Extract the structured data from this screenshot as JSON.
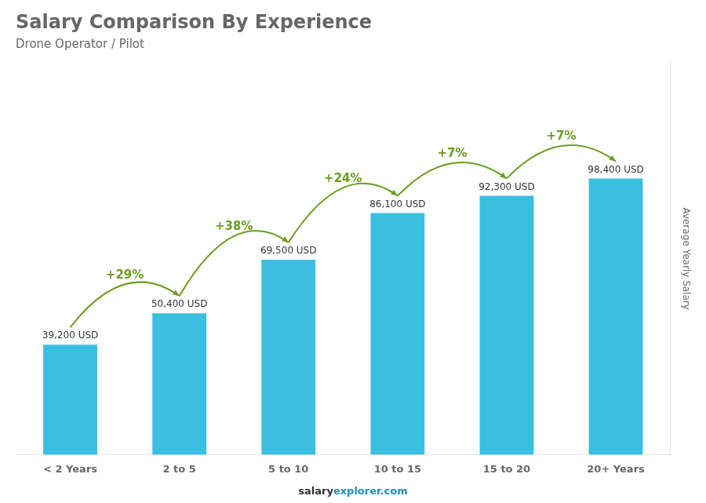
{
  "chart_data": {
    "type": "bar",
    "title": "Salary Comparison By Experience",
    "subtitle": "Drone Operator / Pilot",
    "categories": [
      "< 2 Years",
      "2 to 5",
      "5 to 10",
      "10 to 15",
      "15 to 20",
      "20+ Years"
    ],
    "values": [
      39200,
      50400,
      69500,
      86100,
      92300,
      98400
    ],
    "value_labels": [
      "39,200 USD",
      "50,400 USD",
      "69,500 USD",
      "86,100 USD",
      "92,300 USD",
      "98,400 USD"
    ],
    "data_labels": true,
    "color": "#3BBFE0",
    "ylabel": "Average Yearly Salary",
    "ylim": [
      0,
      139728
    ],
    "tick_labels": "x",
    "grid": false,
    "annotations": [
      "+29%",
      "+38%",
      "+24%",
      "+7%",
      "+7%"
    ],
    "footer": [
      "salary",
      "explorer.com"
    ]
  }
}
